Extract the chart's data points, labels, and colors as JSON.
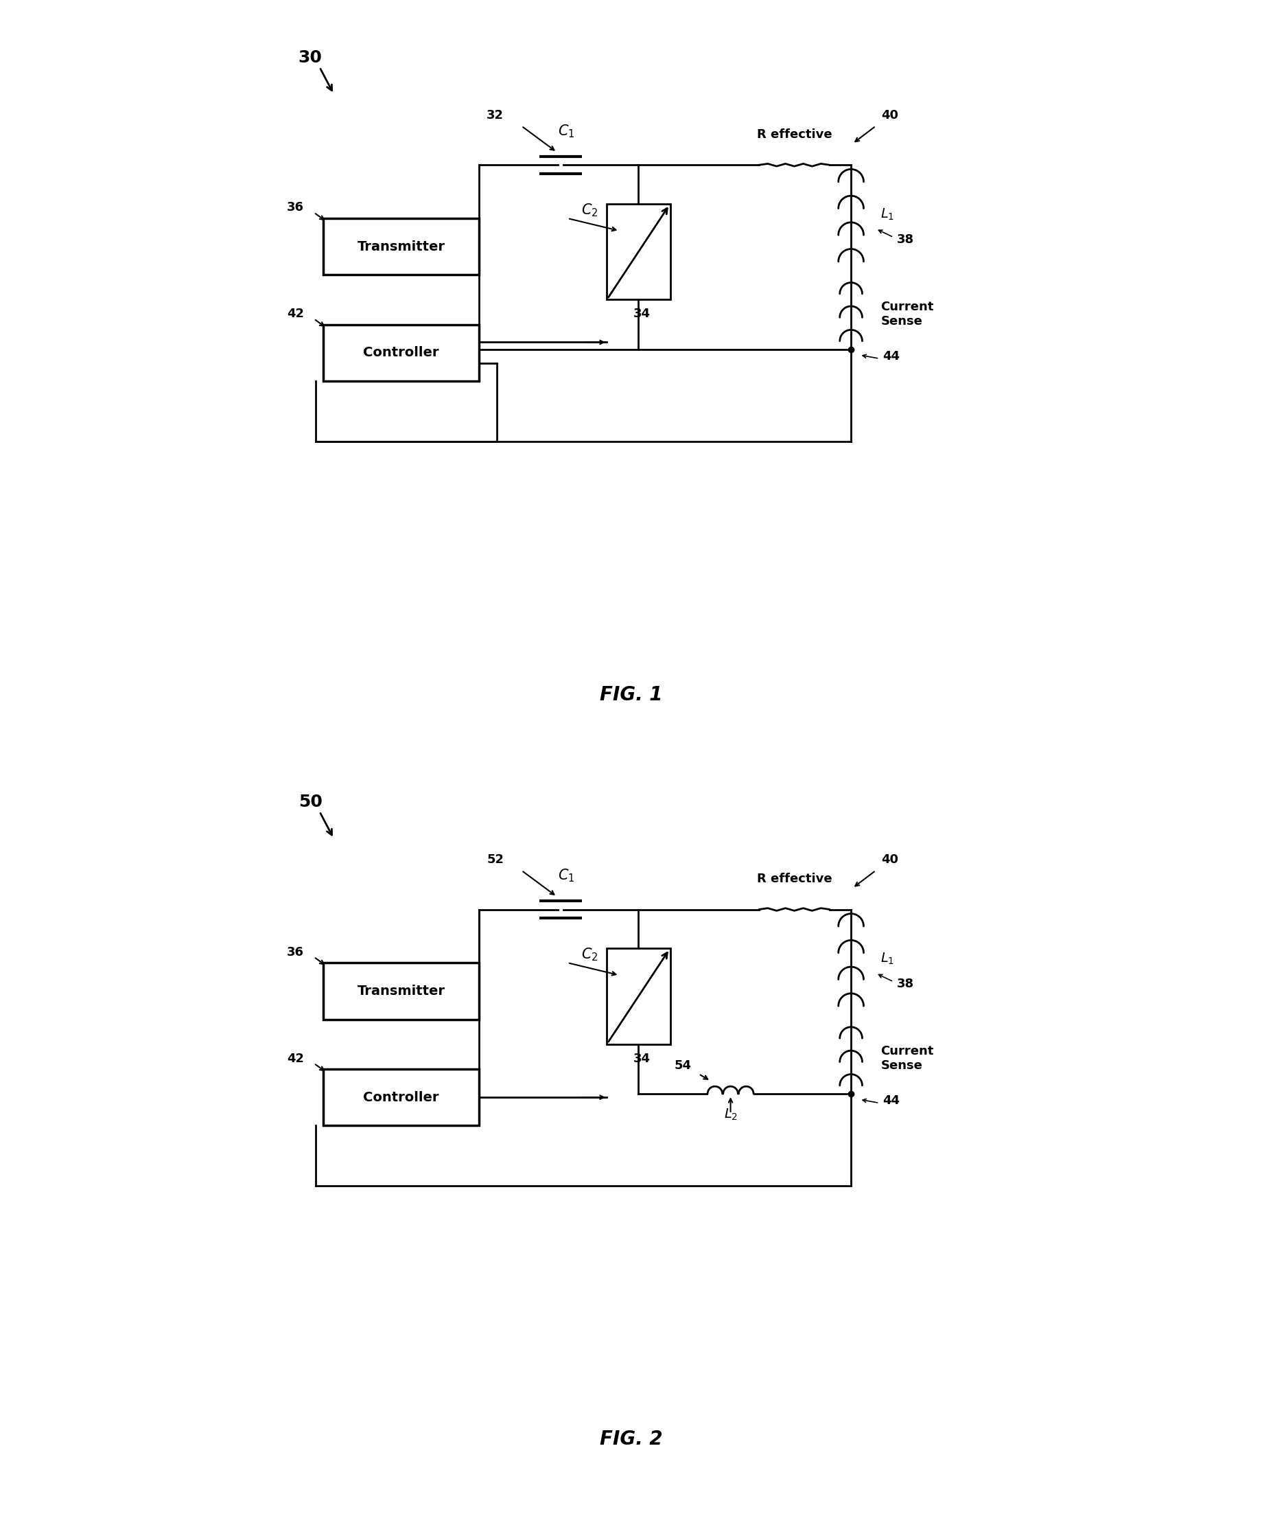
{
  "bg_color": "#ffffff",
  "line_color": "#000000",
  "lw": 2.0,
  "fig1": {
    "label": "30",
    "caption": "FIG. 1",
    "tx_label": "Transmitter",
    "tx_ref": "36",
    "ctrl_label": "Controller",
    "ctrl_ref": "42",
    "c1_ref": "32",
    "c1_label": "C_1",
    "c2_label": "C_2",
    "c2_ref": "34",
    "r_label": "R effective",
    "r_ref": "40",
    "l1_label": "L_1",
    "l1_ref": "38",
    "cs_label": "Current\nSense",
    "node44": "44"
  },
  "fig2": {
    "label": "50",
    "caption": "FIG. 2",
    "tx_label": "Transmitter",
    "tx_ref": "36",
    "ctrl_label": "Controller",
    "ctrl_ref": "42",
    "c1_ref": "52",
    "c1_label": "C_1",
    "c2_label": "C_2",
    "c2_ref": "34",
    "l2_label": "L_2",
    "l2_ref": "54",
    "r_label": "R effective",
    "r_ref": "40",
    "l1_label": "L_1",
    "l1_ref": "38",
    "cs_label": "Current\nSense",
    "node44": "44"
  }
}
